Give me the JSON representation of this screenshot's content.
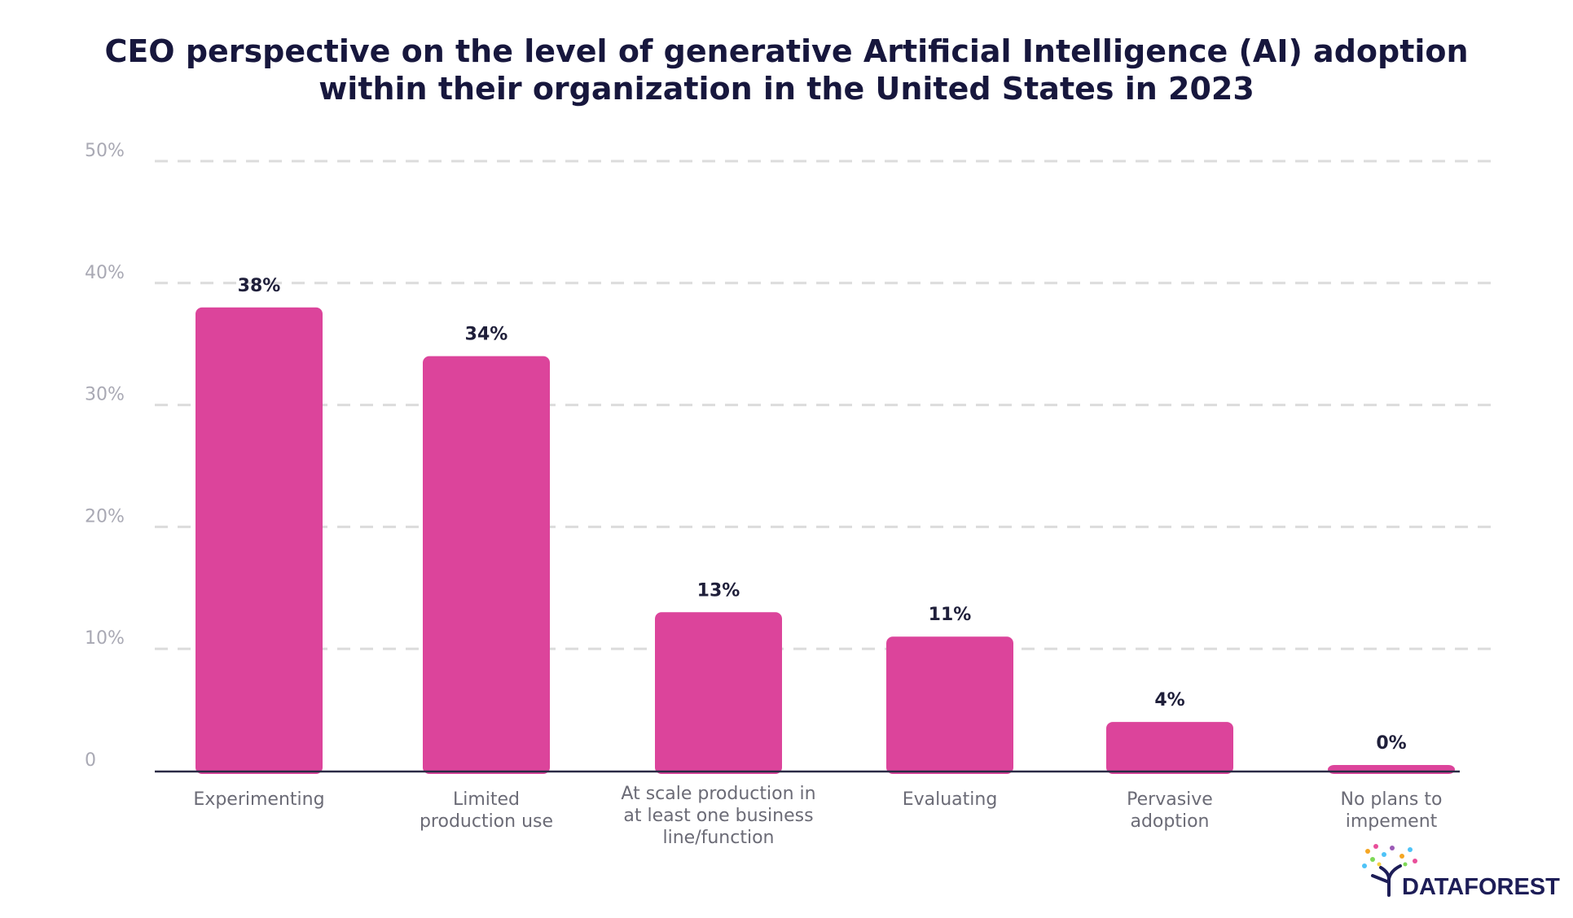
{
  "chart_data": {
    "type": "bar",
    "title_lines": [
      "CEO perspective on the level of generative Artificial Intelligence (AI) adoption",
      "within their organization in the United States in 2023"
    ],
    "categories": [
      [
        "Experimenting"
      ],
      [
        "Limited",
        "production use"
      ],
      [
        "At scale production in",
        "at least one business",
        "line/function"
      ],
      [
        "Evaluating"
      ],
      [
        "Pervasive",
        "adoption"
      ],
      [
        "No plans to",
        "impement"
      ]
    ],
    "values": [
      38,
      34,
      13,
      11,
      4,
      0
    ],
    "value_labels": [
      "38%",
      "34%",
      "13%",
      "11%",
      "4%",
      "0%"
    ],
    "ylim": [
      0,
      50
    ],
    "yticks": [
      0,
      10,
      20,
      30,
      40,
      50
    ],
    "ytick_labels": [
      "0",
      "10%",
      "20%",
      "30%",
      "40%",
      "50%"
    ],
    "grid": true,
    "bar_color": "#dc449b"
  },
  "brand": {
    "name": "DATAFOREST",
    "logo_icon": "tree-icon",
    "text_color": "#1d1d57"
  }
}
